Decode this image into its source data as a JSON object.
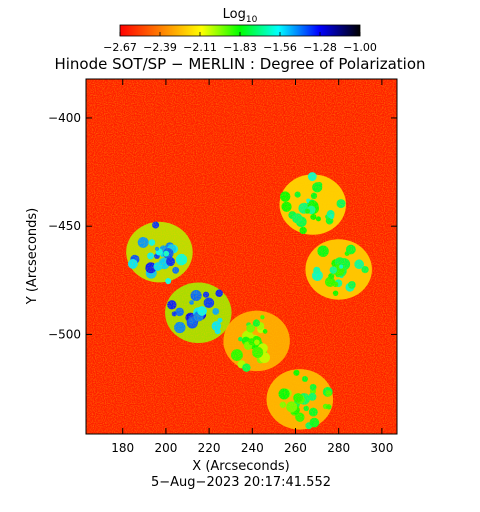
{
  "chart_data": {
    "type": "heatmap",
    "title": "Hinode SOT/SP − MERLIN : Degree of Polarization",
    "xlabel": "X (Arcseconds)",
    "ylabel": "Y (Arcseconds)",
    "xlim": [
      163,
      307
    ],
    "ylim": [
      -546,
      -382
    ],
    "xticks": [
      180,
      200,
      220,
      240,
      260,
      280,
      300
    ],
    "yticks": [
      -400,
      -450,
      -500
    ],
    "timestamp": "5−Aug−2023 20:17:41.552",
    "colorbar": {
      "label_base": "Log",
      "label_sub": "10",
      "range": [
        -2.67,
        -1.0
      ],
      "ticks": [
        "−2.67",
        "−2.39",
        "−2.11",
        "−1.83",
        "−1.56",
        "−1.28",
        "−1.00"
      ],
      "colors": [
        "#ff0000",
        "#ff7f00",
        "#ffff00",
        "#00ff00",
        "#00ffff",
        "#0000ff",
        "#000000"
      ]
    },
    "background_level": -2.6,
    "grid": false,
    "features": [
      {
        "name": "enhanced-network-cluster",
        "x": 215,
        "y": -490,
        "level": -1.4
      },
      {
        "name": "enhanced-network-arc",
        "x": 197,
        "y": -462,
        "level": -1.45
      },
      {
        "name": "plage-diffuse-region",
        "x": 242,
        "y": -503,
        "level": -1.9
      },
      {
        "name": "network-lane-north",
        "x": 268,
        "y": -440,
        "level": -1.7
      },
      {
        "name": "network-lane-east",
        "x": 280,
        "y": -470,
        "level": -1.75
      },
      {
        "name": "network-lane-south",
        "x": 262,
        "y": -530,
        "level": -1.85
      }
    ]
  }
}
